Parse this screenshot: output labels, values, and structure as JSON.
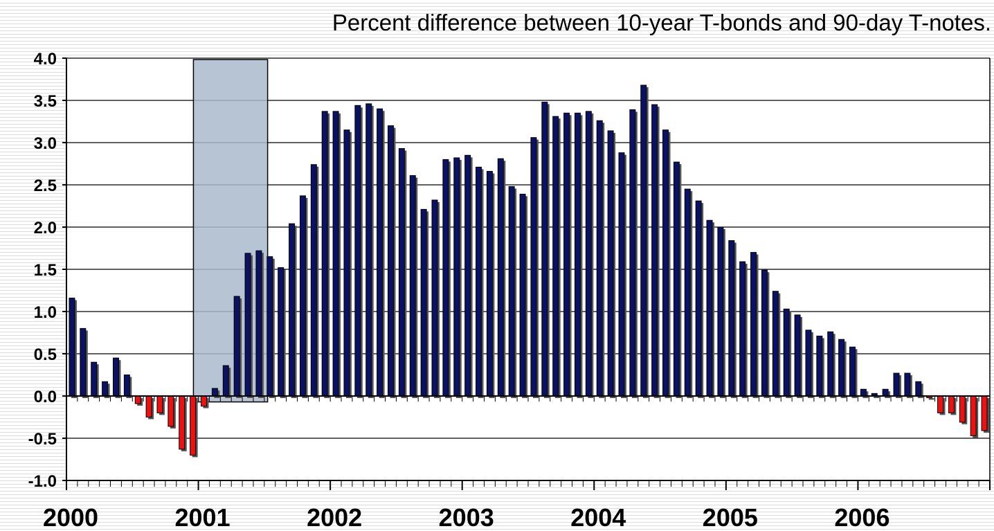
{
  "chart_data": {
    "type": "bar",
    "title": "Percent difference between 10-year T-bonds and 90-day T-notes.",
    "xlabel": "",
    "ylabel": "",
    "ylim": [
      -1.0,
      4.0
    ],
    "yticks": [
      "4.0",
      "3.5",
      "3.0",
      "2.5",
      "2.0",
      "1.5",
      "1.0",
      "0.5",
      "0.0",
      "-0.5",
      "-1.0"
    ],
    "x_tick_labels": [
      "2000",
      "2001",
      "2002",
      "2003",
      "2004",
      "2005",
      "2006"
    ],
    "grid": true,
    "legend": "none",
    "start_month": "2000-01",
    "months_per_year": 12,
    "shaded_period": {
      "start_month_index": 11,
      "end_month_index": 17,
      "color": "#a9bacd"
    },
    "colors": {
      "positive": "#0b1263",
      "negative": "#ee1111",
      "shade": "#a9bacd"
    },
    "values": [
      1.16,
      0.8,
      0.4,
      0.17,
      0.45,
      0.25,
      -0.09,
      -0.25,
      -0.2,
      -0.36,
      -0.63,
      -0.7,
      -0.12,
      0.09,
      0.36,
      1.18,
      1.69,
      1.72,
      1.65,
      1.52,
      2.04,
      2.37,
      2.74,
      3.37,
      3.37,
      3.15,
      3.44,
      3.46,
      3.4,
      3.2,
      2.93,
      2.61,
      2.21,
      2.32,
      2.8,
      2.82,
      2.85,
      2.71,
      2.66,
      2.81,
      2.48,
      2.39,
      3.06,
      3.48,
      3.31,
      3.35,
      3.35,
      3.37,
      3.26,
      3.14,
      2.88,
      3.39,
      3.68,
      3.45,
      3.15,
      2.77,
      2.45,
      2.31,
      2.08,
      2.0,
      1.84,
      1.59,
      1.7,
      1.49,
      1.24,
      1.03,
      0.96,
      0.78,
      0.71,
      0.76,
      0.67,
      0.58,
      0.08,
      0.03,
      0.08,
      0.27,
      0.27,
      0.17,
      -0.02,
      -0.2,
      -0.2,
      -0.31,
      -0.47,
      -0.41
    ]
  }
}
